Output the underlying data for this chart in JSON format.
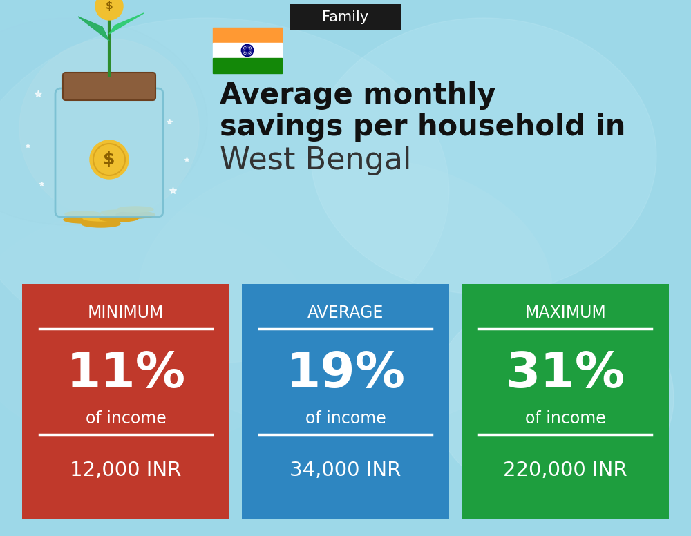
{
  "title_tag": "Family",
  "title_tag_bg": "#1a1a1a",
  "title_tag_color": "#ffffff",
  "headline_bold_line1": "Average monthly",
  "headline_bold_line2": "savings per household in",
  "headline_normal": "West Bengal",
  "headline_bold_color": "#111111",
  "headline_normal_color": "#333333",
  "bg_color": "#9dd8e8",
  "cards": [
    {
      "label": "MINIMUM",
      "percent": "11%",
      "sub": "of income",
      "amount": "12,000 INR",
      "bg_color": "#c0392b"
    },
    {
      "label": "AVERAGE",
      "percent": "19%",
      "sub": "of income",
      "amount": "34,000 INR",
      "bg_color": "#2e86c1"
    },
    {
      "label": "MAXIMUM",
      "percent": "31%",
      "sub": "of income",
      "amount": "220,000 INR",
      "bg_color": "#1e9e3e"
    }
  ],
  "card_text_color": "#ffffff",
  "fig_width": 10.0,
  "fig_height": 7.76
}
